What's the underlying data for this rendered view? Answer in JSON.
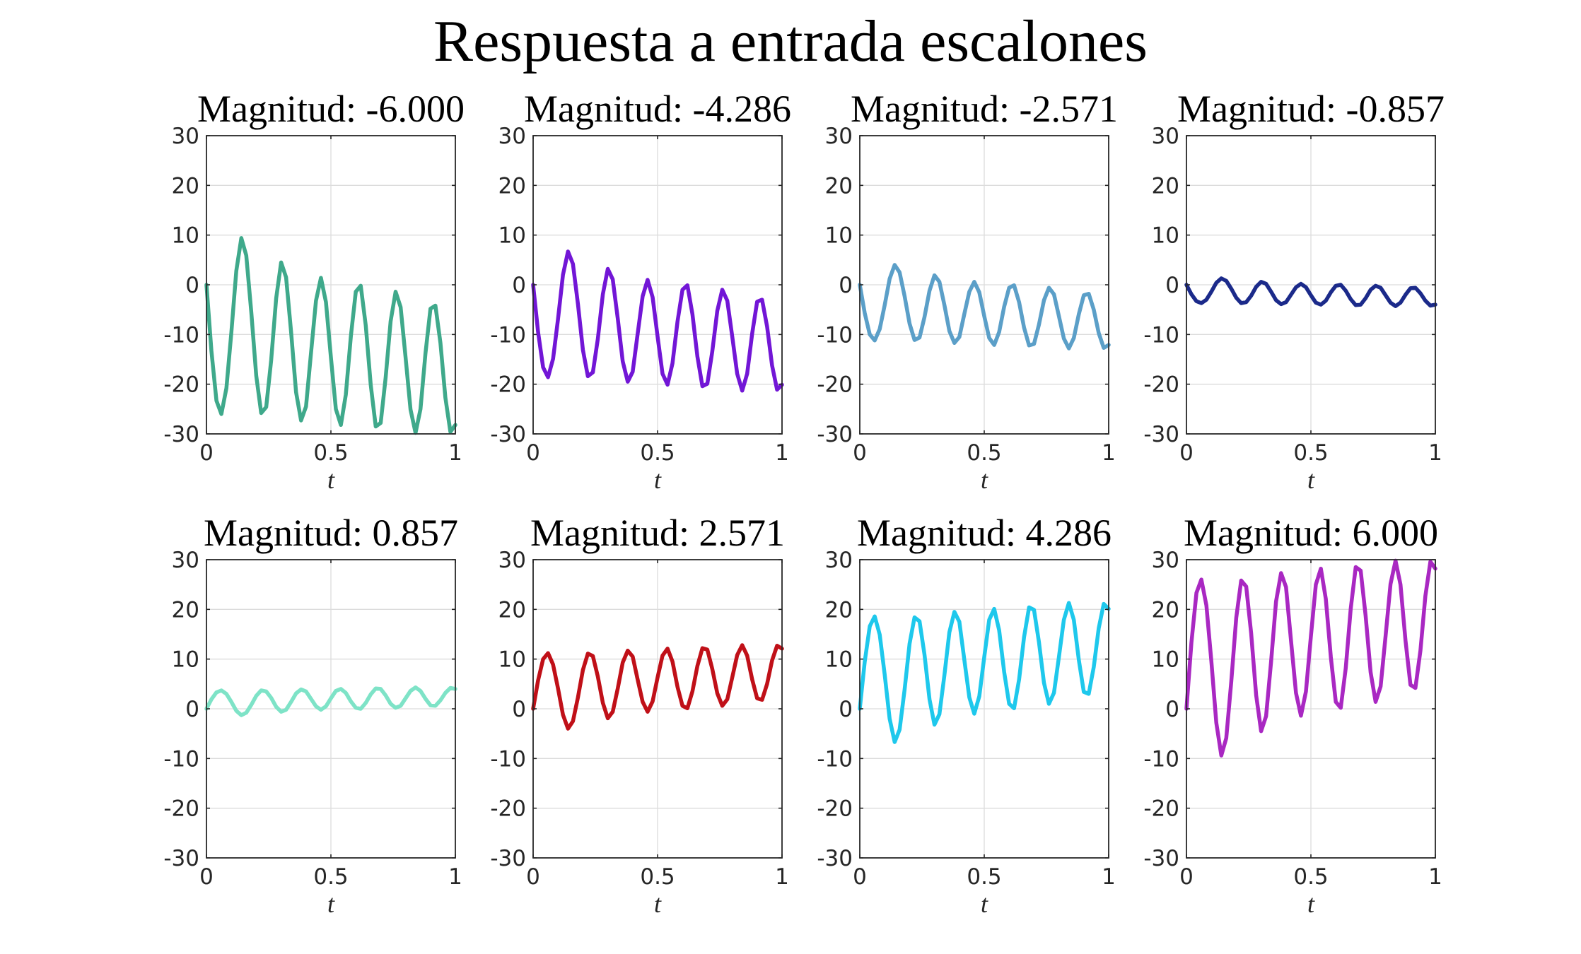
{
  "figure_title": "Respuesta a entrada escalones",
  "chart_data": {
    "type": "line",
    "title": "Respuesta a entrada escalones",
    "grid": true,
    "xlim": [
      0,
      1
    ],
    "ylim": [
      -30,
      30
    ],
    "xticks": [
      0,
      0.5,
      1
    ],
    "xtick_labels": [
      "0",
      "0.5",
      "1"
    ],
    "yticks": [
      -30,
      -20,
      -10,
      0,
      10,
      20,
      30
    ],
    "ytick_labels": [
      "-30",
      "-20",
      "-10",
      "0",
      "10",
      "20",
      "30"
    ],
    "xlabel": "t",
    "ylabel": "",
    "x": [
      0,
      0.02,
      0.04,
      0.06,
      0.08,
      0.1,
      0.12,
      0.14,
      0.16,
      0.18,
      0.2,
      0.22,
      0.24,
      0.26,
      0.28,
      0.3,
      0.32,
      0.34,
      0.36,
      0.38,
      0.4,
      0.42,
      0.44,
      0.46,
      0.48,
      0.5,
      0.52,
      0.54,
      0.56,
      0.58,
      0.6,
      0.62,
      0.64,
      0.66,
      0.68,
      0.7,
      0.72,
      0.74,
      0.76,
      0.78,
      0.8,
      0.82,
      0.84,
      0.86,
      0.88,
      0.9,
      0.92,
      0.94,
      0.96,
      0.98,
      1.0
    ],
    "subplots": [
      {
        "title": "Magnitud: -6.000",
        "color": "#3fa98b",
        "values": [
          0,
          -13.3,
          -23.3,
          -26.0,
          -20.8,
          -9.6,
          2.8,
          9.4,
          5.9,
          -5.5,
          -18.3,
          -25.8,
          -24.6,
          -15.2,
          -2.7,
          4.5,
          1.5,
          -9.5,
          -21.6,
          -27.3,
          -24.5,
          -13.8,
          -3.2,
          1.4,
          -3.5,
          -14.6,
          -25.0,
          -28.2,
          -22.1,
          -10.4,
          -1.4,
          -0.2,
          -8.2,
          -20.1,
          -28.5,
          -27.8,
          -18.7,
          -7.3,
          -1.4,
          -4.5,
          -14.6,
          -25.1,
          -29.8,
          -25.0,
          -13.7,
          -4.8,
          -4.2,
          -11.7,
          -22.7,
          -29.6,
          -28.2
        ]
      },
      {
        "title": "Magnitud: -4.286",
        "color": "#7216d6",
        "values": [
          0,
          -9.5,
          -16.6,
          -18.6,
          -14.9,
          -6.9,
          2.0,
          6.7,
          4.2,
          -3.9,
          -13.1,
          -18.4,
          -17.6,
          -10.9,
          -1.9,
          3.2,
          1.1,
          -6.8,
          -15.4,
          -19.5,
          -17.5,
          -9.9,
          -2.3,
          1.0,
          -2.5,
          -10.4,
          -17.9,
          -20.1,
          -15.8,
          -7.4,
          -1.0,
          -0.1,
          -5.9,
          -14.4,
          -20.4,
          -19.9,
          -13.4,
          -5.2,
          -1.0,
          -3.2,
          -10.4,
          -17.9,
          -21.3,
          -17.9,
          -9.8,
          -3.4,
          -3.0,
          -8.4,
          -16.2,
          -21.1,
          -20.1
        ]
      },
      {
        "title": "Magnitud: -2.571",
        "color": "#5b9fc8",
        "values": [
          0,
          -5.7,
          -10.0,
          -11.2,
          -8.9,
          -4.1,
          1.2,
          4.0,
          2.5,
          -2.3,
          -7.8,
          -11.1,
          -10.6,
          -6.5,
          -1.2,
          1.9,
          0.6,
          -4.1,
          -9.3,
          -11.7,
          -10.5,
          -5.9,
          -1.4,
          0.6,
          -1.5,
          -6.3,
          -10.7,
          -12.1,
          -9.5,
          -4.4,
          -0.6,
          -0.1,
          -3.5,
          -8.6,
          -12.2,
          -11.9,
          -8.0,
          -3.1,
          -0.6,
          -1.9,
          -6.3,
          -10.8,
          -12.8,
          -10.7,
          -5.9,
          -2.1,
          -1.8,
          -5.0,
          -9.7,
          -12.7,
          -12.1
        ]
      },
      {
        "title": "Magnitud: -0.857",
        "color": "#1b2a8a",
        "values": [
          0,
          -1.9,
          -3.3,
          -3.7,
          -3.0,
          -1.4,
          0.4,
          1.3,
          0.8,
          -0.8,
          -2.6,
          -3.7,
          -3.5,
          -2.2,
          -0.4,
          0.6,
          0.2,
          -1.4,
          -3.1,
          -3.9,
          -3.5,
          -2.0,
          -0.5,
          0.2,
          -0.5,
          -2.1,
          -3.6,
          -4.0,
          -3.2,
          -1.5,
          -0.2,
          0.0,
          -1.2,
          -2.9,
          -4.1,
          -4.0,
          -2.7,
          -1.0,
          -0.2,
          -0.6,
          -2.1,
          -3.6,
          -4.3,
          -3.6,
          -2.0,
          -0.7,
          -0.6,
          -1.7,
          -3.2,
          -4.2,
          -4.0
        ]
      },
      {
        "title": "Magnitud: 0.857",
        "color": "#7ee3c7",
        "values": [
          0,
          1.9,
          3.3,
          3.7,
          3.0,
          1.4,
          -0.4,
          -1.3,
          -0.8,
          0.8,
          2.6,
          3.7,
          3.5,
          2.2,
          0.4,
          -0.6,
          -0.2,
          1.4,
          3.1,
          3.9,
          3.5,
          2.0,
          0.5,
          -0.2,
          0.5,
          2.1,
          3.6,
          4.0,
          3.2,
          1.5,
          0.2,
          0.0,
          1.2,
          2.9,
          4.1,
          4.0,
          2.7,
          1.0,
          0.2,
          0.6,
          2.1,
          3.6,
          4.3,
          3.6,
          2.0,
          0.7,
          0.6,
          1.7,
          3.2,
          4.2,
          4.0
        ]
      },
      {
        "title": "Magnitud: 2.571",
        "color": "#c01018",
        "values": [
          0,
          5.7,
          10.0,
          11.2,
          8.9,
          4.1,
          -1.2,
          -4.0,
          -2.5,
          2.3,
          7.8,
          11.1,
          10.6,
          6.5,
          1.2,
          -1.9,
          -0.6,
          4.1,
          9.3,
          11.7,
          10.5,
          5.9,
          1.4,
          -0.6,
          1.5,
          6.3,
          10.7,
          12.1,
          9.5,
          4.4,
          0.6,
          0.1,
          3.5,
          8.6,
          12.2,
          11.9,
          8.0,
          3.1,
          0.6,
          1.9,
          6.3,
          10.8,
          12.8,
          10.7,
          5.9,
          2.1,
          1.8,
          5.0,
          9.7,
          12.7,
          12.1
        ]
      },
      {
        "title": "Magnitud: 4.286",
        "color": "#1ec8ec",
        "values": [
          0,
          9.5,
          16.6,
          18.6,
          14.9,
          6.9,
          -2.0,
          -6.7,
          -4.2,
          3.9,
          13.1,
          18.4,
          17.6,
          10.9,
          1.9,
          -3.2,
          -1.1,
          6.8,
          15.4,
          19.5,
          17.5,
          9.9,
          2.3,
          -1.0,
          2.5,
          10.4,
          17.9,
          20.1,
          15.8,
          7.4,
          1.0,
          0.1,
          5.9,
          14.4,
          20.4,
          19.9,
          13.4,
          5.2,
          1.0,
          3.2,
          10.4,
          17.9,
          21.3,
          17.9,
          9.8,
          3.4,
          3.0,
          8.4,
          16.2,
          21.1,
          20.1
        ]
      },
      {
        "title": "Magnitud: 6.000",
        "color": "#a928c2",
        "values": [
          0,
          13.3,
          23.3,
          26.0,
          20.8,
          9.6,
          -2.8,
          -9.4,
          -5.9,
          5.5,
          18.3,
          25.8,
          24.6,
          15.2,
          2.7,
          -4.5,
          -1.5,
          9.5,
          21.6,
          27.3,
          24.5,
          13.8,
          3.2,
          -1.4,
          3.5,
          14.6,
          25.0,
          28.2,
          22.1,
          10.4,
          1.4,
          0.2,
          8.2,
          20.1,
          28.5,
          27.8,
          18.7,
          7.3,
          1.4,
          4.5,
          14.6,
          25.1,
          29.8,
          25.0,
          13.7,
          4.8,
          4.2,
          11.7,
          22.7,
          29.6,
          28.2
        ]
      }
    ]
  }
}
